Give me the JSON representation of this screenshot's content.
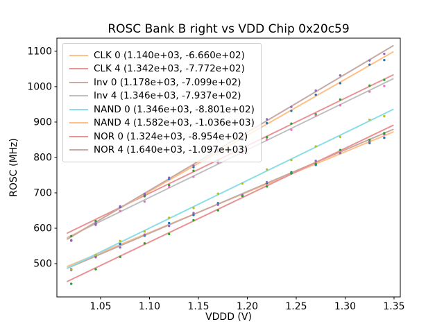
{
  "chart_data": {
    "type": "scatter",
    "title": "ROSC Bank B right vs VDD Chip 0x20c59",
    "xlabel": "VDDD (V)",
    "ylabel": "ROSC (MHz)",
    "grid": false,
    "legend_position": "upper left",
    "xlim": [
      1.0053,
      1.3564
    ],
    "ylim": [
      406,
      1137
    ],
    "x_ticks": {
      "values": [
        1.05,
        1.1,
        1.15,
        1.2,
        1.25,
        1.3,
        1.35
      ],
      "labels": [
        "1.05",
        "1.10",
        "1.15",
        "1.20",
        "1.25",
        "1.30",
        "1.35"
      ]
    },
    "y_ticks": {
      "values": [
        500,
        600,
        700,
        800,
        900,
        1000,
        1100
      ],
      "labels": [
        "500",
        "600",
        "700",
        "800",
        "900",
        "1000",
        "1100"
      ]
    },
    "x": [
      1.02,
      1.045,
      1.07,
      1.095,
      1.12,
      1.145,
      1.17,
      1.195,
      1.22,
      1.245,
      1.27,
      1.295,
      1.325,
      1.34
    ],
    "fit_line_x_range": [
      1.016,
      1.349
    ],
    "series": [
      {
        "name": "CLK 0",
        "legend_label": "CLK 0 (1.140e+03, -6.660e+02)",
        "fit_slope": 1140.0,
        "fit_intercept": -666.0,
        "line_color": "#ffbf86",
        "dot_color": "#1f77b4",
        "values": [
          484.8,
          521.3,
          555.8,
          579.3,
          614.8,
          637.3,
          670.8,
          692.3,
          726.8,
          758.3,
          778.8,
          812.3,
          840.5,
          855.6
        ]
      },
      {
        "name": "CLK 4",
        "legend_label": "CLK 4 (1.342e+03, -7.772e+02)",
        "fit_slope": 1342.0,
        "fit_intercept": -777.2,
        "line_color": "#ea9394",
        "dot_color": "#2ca02c",
        "values": [
          577.6,
          620.2,
          661.7,
          690.3,
          721.8,
          762.4,
          790.9,
          830.5,
          857.0,
          895.6,
          922.1,
          963.7,
          1003.0,
          1019.1
        ]
      },
      {
        "name": "Inv 0",
        "legend_label": "Inv 0 (1.178e+03, -7.099e+02)",
        "fit_slope": 1178.0,
        "fit_intercept": -709.9,
        "line_color": "#c5aaa5",
        "dot_color": "#9467bd",
        "values": [
          481.7,
          518.1,
          545.6,
          582.0,
          606.5,
          642.9,
          666.4,
          693.8,
          730.3,
          754.7,
          790.2,
          812.6,
          845.0,
          865.6
        ]
      },
      {
        "name": "Inv 4",
        "legend_label": "Inv 4 (1.346e+03, -7.937e+02)",
        "fit_slope": 1346.0,
        "fit_intercept": -793.7,
        "line_color": "#bfbfbf",
        "dot_color": "#e377c2",
        "values": [
          566.2,
          608.9,
          648.5,
          675.2,
          716.8,
          745.5,
          785.1,
          811.8,
          850.4,
          878.1,
          918.7,
          947.4,
          985.8,
          1001.9
        ]
      },
      {
        "name": "NAND 0",
        "legend_label": "NAND 0 (1.346e+03, -8.801e+02)",
        "fit_slope": 1346.0,
        "fit_intercept": -880.1,
        "line_color": "#8bdee7",
        "dot_color": "#bcbd22",
        "values": [
          483.8,
          524.5,
          564.1,
          590.8,
          629.4,
          657.1,
          697.7,
          726.4,
          766.0,
          792.7,
          831.3,
          858.0,
          906.4,
          916.5
        ]
      },
      {
        "name": "NAND 4",
        "legend_label": "NAND 4 (1.582e+03, -1.036e+03)",
        "fit_slope": 1582.0,
        "fit_intercept": -1036.0,
        "line_color": "#ffbf86",
        "dot_color": "#1f77b4",
        "values": [
          565.6,
          612.2,
          659.7,
          694.3,
          739.8,
          772.4,
          816.9,
          850.5,
          897.0,
          931.6,
          977.1,
          1009.7,
          1062.2,
          1074.9
        ]
      },
      {
        "name": "NOR 0",
        "legend_label": "NOR 0 (1.324e+03, -8.954e+02)",
        "fit_slope": 1324.0,
        "fit_intercept": -895.4,
        "line_color": "#ea9394",
        "dot_color": "#2ca02c",
        "values": [
          443.1,
          484.2,
          519.3,
          557.4,
          583.5,
          622.6,
          650.7,
          690.8,
          717.9,
          756.0,
          782.1,
          821.2,
          849.9,
          868.8
        ]
      },
      {
        "name": "NOR 4",
        "legend_label": "NOR 4 (1.640e+03, -1.097e+03)",
        "fit_slope": 1640.0,
        "fit_intercept": -1097.0,
        "line_color": "#c5aaa5",
        "dot_color": "#9467bd",
        "values": [
          564.8,
          613.8,
          661.8,
          696.8,
          742.8,
          776.8,
          823.8,
          859.8,
          907.8,
          942.8,
          988.8,
          1031.8,
          1074.0,
          1092.6
        ]
      }
    ]
  }
}
